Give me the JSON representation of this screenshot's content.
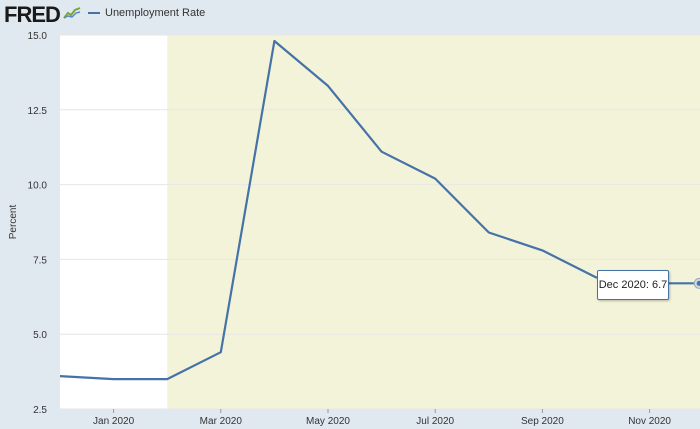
{
  "header": {
    "logo_text": "FRED",
    "legend_label": "Unemployment Rate"
  },
  "tooltip": {
    "label": "Dec 2020:",
    "value": "6.7"
  },
  "colors": {
    "line": "#4572a7",
    "recession_band": "#f3f3d9",
    "plot_background": "#ffffff",
    "page_background": "#e1e9f0"
  },
  "chart_data": {
    "type": "line",
    "title": "",
    "xlabel": "",
    "ylabel": "Percent",
    "x": [
      "2019-12",
      "2020-01",
      "2020-02",
      "2020-03",
      "2020-04",
      "2020-05",
      "2020-06",
      "2020-07",
      "2020-08",
      "2020-09",
      "2020-10",
      "2020-11",
      "2020-12"
    ],
    "series": [
      {
        "name": "Unemployment Rate",
        "values": [
          3.6,
          3.5,
          3.5,
          4.4,
          14.8,
          13.3,
          11.1,
          10.2,
          8.4,
          7.8,
          6.9,
          6.7,
          6.7
        ]
      }
    ],
    "ylim": [
      2.5,
      15.0
    ],
    "y_ticks": [
      "2.5",
      "5.0",
      "7.5",
      "10.0",
      "12.5",
      "15.0"
    ],
    "x_ticks": [
      {
        "x": "2020-01",
        "label": "Jan 2020"
      },
      {
        "x": "2020-03",
        "label": "Mar 2020"
      },
      {
        "x": "2020-05",
        "label": "May 2020"
      },
      {
        "x": "2020-07",
        "label": "Jul 2020"
      },
      {
        "x": "2020-09",
        "label": "Sep 2020"
      },
      {
        "x": "2020-11",
        "label": "Nov 2020"
      }
    ],
    "recession_shading": {
      "start": "2020-02",
      "end": "2020-12"
    },
    "grid": true,
    "legend": "top-left"
  }
}
